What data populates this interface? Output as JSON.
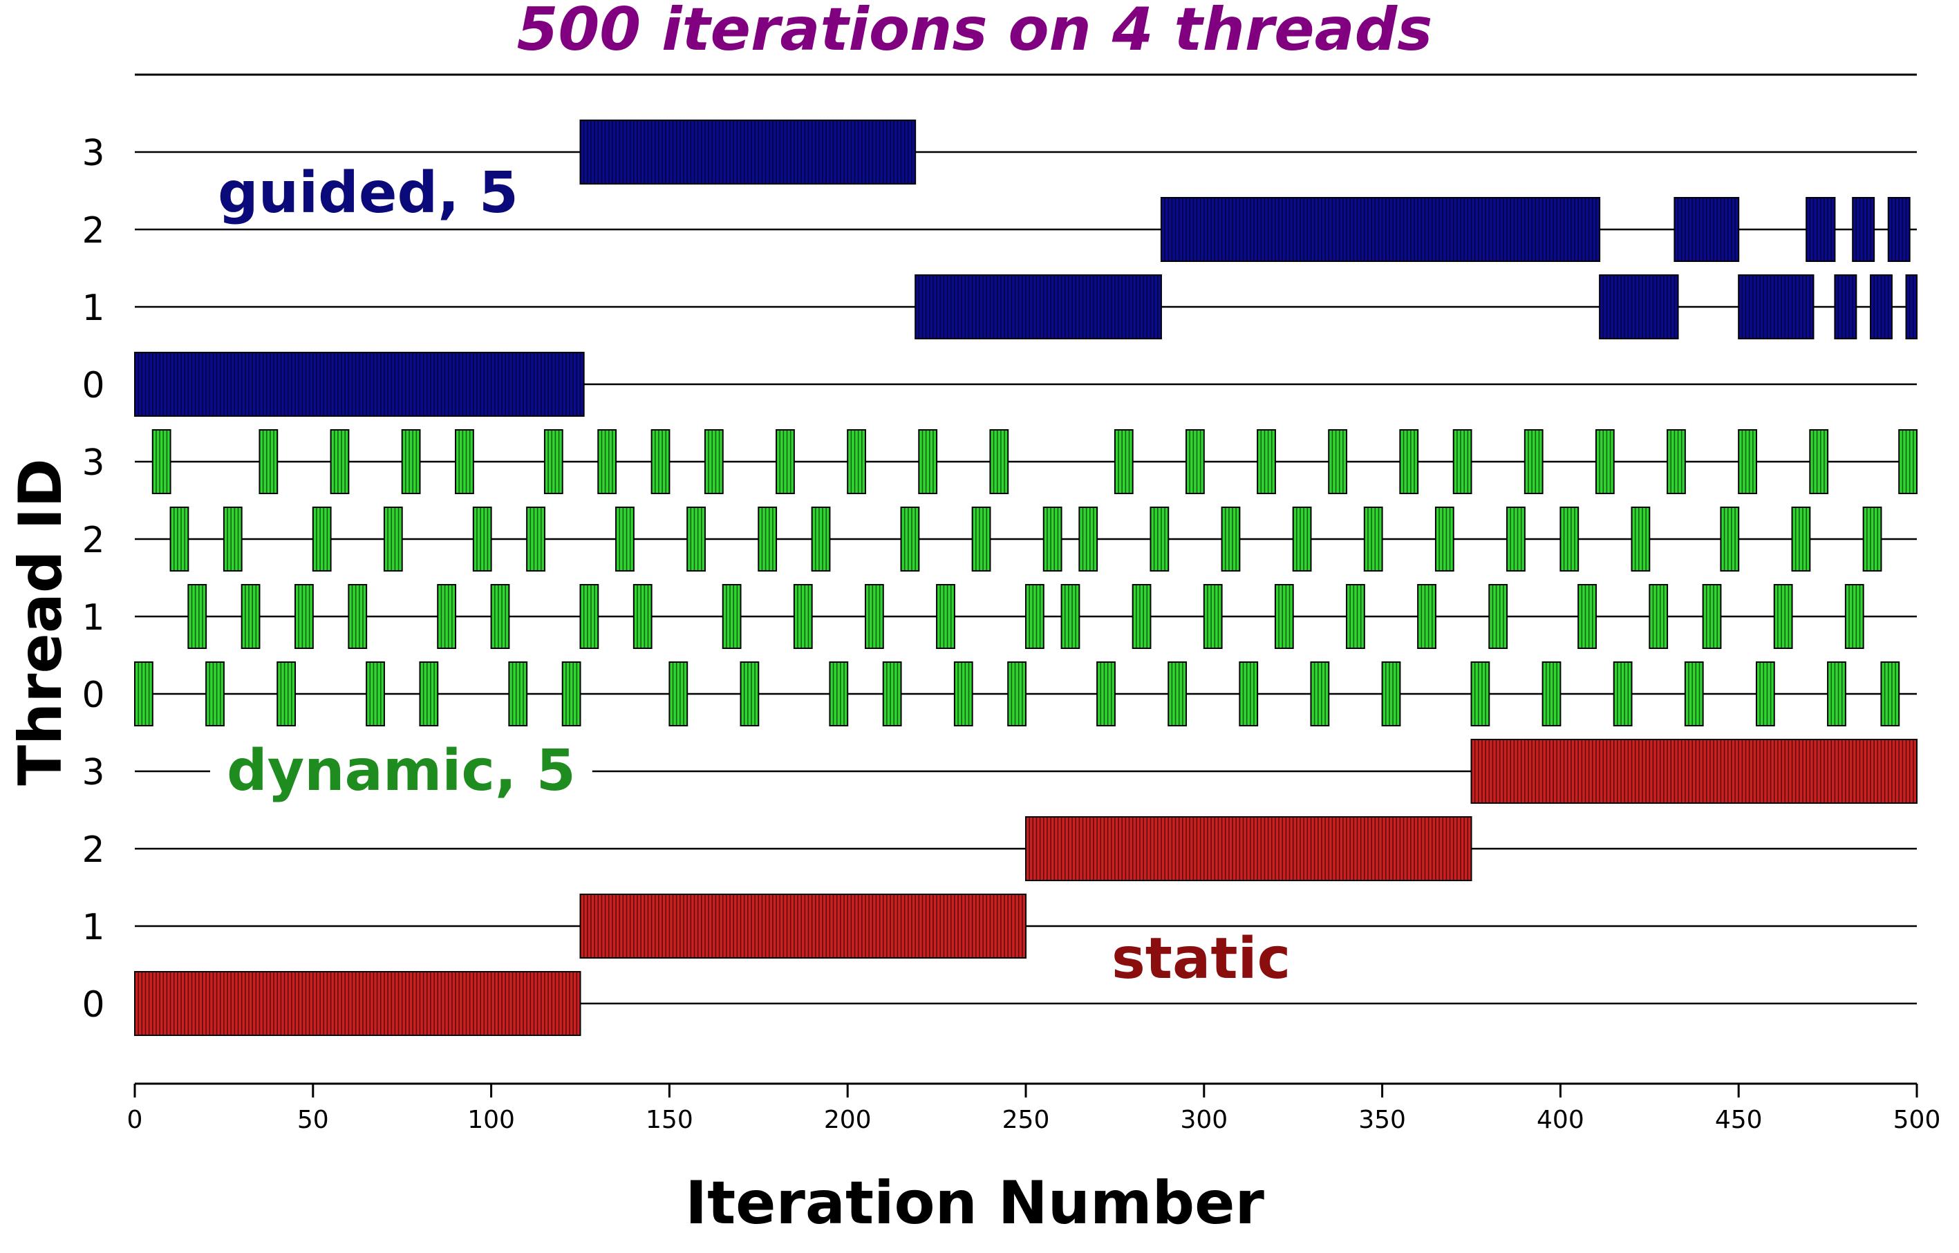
{
  "chart_data": {
    "type": "gantt",
    "title": "500 iterations on 4 threads",
    "xlabel": "Iteration Number",
    "ylabel": "Thread ID",
    "xlim": [
      0,
      500
    ],
    "xticks": [
      0,
      50,
      100,
      150,
      200,
      250,
      300,
      350,
      400,
      450,
      500
    ],
    "grid": false,
    "colors": {
      "title": "#800080",
      "guided": "#0a0a8c",
      "dynamic": "#2fd62f",
      "static": "#cc1f1f",
      "guided_label": "#0a0a7a",
      "dynamic_label": "#1f8c1f",
      "static_label": "#8b0e0e"
    },
    "groups": [
      {
        "name": "guided",
        "annotation": "guided, 5",
        "threads": [
          {
            "thread": "3",
            "intervals": [
              [
                125,
                219
              ]
            ]
          },
          {
            "thread": "2",
            "intervals": [
              [
                288,
                411
              ],
              [
                432,
                450
              ],
              [
                469,
                477
              ],
              [
                482,
                488
              ],
              [
                492,
                498
              ]
            ]
          },
          {
            "thread": "1",
            "intervals": [
              [
                219,
                288
              ],
              [
                411,
                433
              ],
              [
                450,
                471
              ],
              [
                477,
                483
              ],
              [
                487,
                493
              ],
              [
                497,
                500
              ]
            ]
          },
          {
            "thread": "0",
            "intervals": [
              [
                0,
                126
              ]
            ]
          }
        ]
      },
      {
        "name": "dynamic",
        "annotation": "dynamic, 5",
        "threads": [
          {
            "thread": "3",
            "intervals": [
              [
                5,
                10
              ],
              [
                35,
                40
              ],
              [
                55,
                60
              ],
              [
                75,
                80
              ],
              [
                90,
                95
              ],
              [
                115,
                120
              ],
              [
                130,
                135
              ],
              [
                145,
                150
              ],
              [
                160,
                165
              ],
              [
                180,
                185
              ],
              [
                200,
                205
              ],
              [
                220,
                225
              ],
              [
                240,
                245
              ],
              [
                275,
                280
              ],
              [
                295,
                300
              ],
              [
                315,
                320
              ],
              [
                335,
                340
              ],
              [
                355,
                360
              ],
              [
                370,
                375
              ],
              [
                390,
                395
              ],
              [
                410,
                415
              ],
              [
                430,
                435
              ],
              [
                450,
                455
              ],
              [
                470,
                475
              ],
              [
                495,
                500
              ]
            ]
          },
          {
            "thread": "2",
            "intervals": [
              [
                10,
                15
              ],
              [
                25,
                30
              ],
              [
                50,
                55
              ],
              [
                70,
                75
              ],
              [
                95,
                100
              ],
              [
                110,
                115
              ],
              [
                135,
                140
              ],
              [
                155,
                160
              ],
              [
                175,
                180
              ],
              [
                190,
                195
              ],
              [
                215,
                220
              ],
              [
                235,
                240
              ],
              [
                255,
                260
              ],
              [
                265,
                270
              ],
              [
                285,
                290
              ],
              [
                305,
                310
              ],
              [
                325,
                330
              ],
              [
                345,
                350
              ],
              [
                365,
                370
              ],
              [
                385,
                390
              ],
              [
                400,
                405
              ],
              [
                420,
                425
              ],
              [
                445,
                450
              ],
              [
                465,
                470
              ],
              [
                485,
                490
              ]
            ]
          },
          {
            "thread": "1",
            "intervals": [
              [
                15,
                20
              ],
              [
                30,
                35
              ],
              [
                45,
                50
              ],
              [
                60,
                65
              ],
              [
                85,
                90
              ],
              [
                100,
                105
              ],
              [
                125,
                130
              ],
              [
                140,
                145
              ],
              [
                165,
                170
              ],
              [
                185,
                190
              ],
              [
                205,
                210
              ],
              [
                225,
                230
              ],
              [
                250,
                255
              ],
              [
                260,
                265
              ],
              [
                280,
                285
              ],
              [
                300,
                305
              ],
              [
                320,
                325
              ],
              [
                340,
                345
              ],
              [
                360,
                365
              ],
              [
                380,
                385
              ],
              [
                405,
                410
              ],
              [
                425,
                430
              ],
              [
                440,
                445
              ],
              [
                460,
                465
              ],
              [
                480,
                485
              ]
            ]
          },
          {
            "thread": "0",
            "intervals": [
              [
                0,
                5
              ],
              [
                20,
                25
              ],
              [
                40,
                45
              ],
              [
                65,
                70
              ],
              [
                80,
                85
              ],
              [
                105,
                110
              ],
              [
                120,
                125
              ],
              [
                150,
                155
              ],
              [
                170,
                175
              ],
              [
                195,
                200
              ],
              [
                210,
                215
              ],
              [
                230,
                235
              ],
              [
                245,
                250
              ],
              [
                270,
                275
              ],
              [
                290,
                295
              ],
              [
                310,
                315
              ],
              [
                330,
                335
              ],
              [
                350,
                355
              ],
              [
                375,
                380
              ],
              [
                395,
                400
              ],
              [
                415,
                420
              ],
              [
                435,
                440
              ],
              [
                455,
                460
              ],
              [
                475,
                480
              ],
              [
                490,
                495
              ]
            ]
          }
        ]
      },
      {
        "name": "static",
        "annotation": "static",
        "threads": [
          {
            "thread": "3",
            "intervals": [
              [
                375,
                500
              ]
            ]
          },
          {
            "thread": "2",
            "intervals": [
              [
                250,
                375
              ]
            ]
          },
          {
            "thread": "1",
            "intervals": [
              [
                125,
                250
              ]
            ]
          },
          {
            "thread": "0",
            "intervals": [
              [
                0,
                125
              ]
            ]
          }
        ]
      }
    ]
  }
}
